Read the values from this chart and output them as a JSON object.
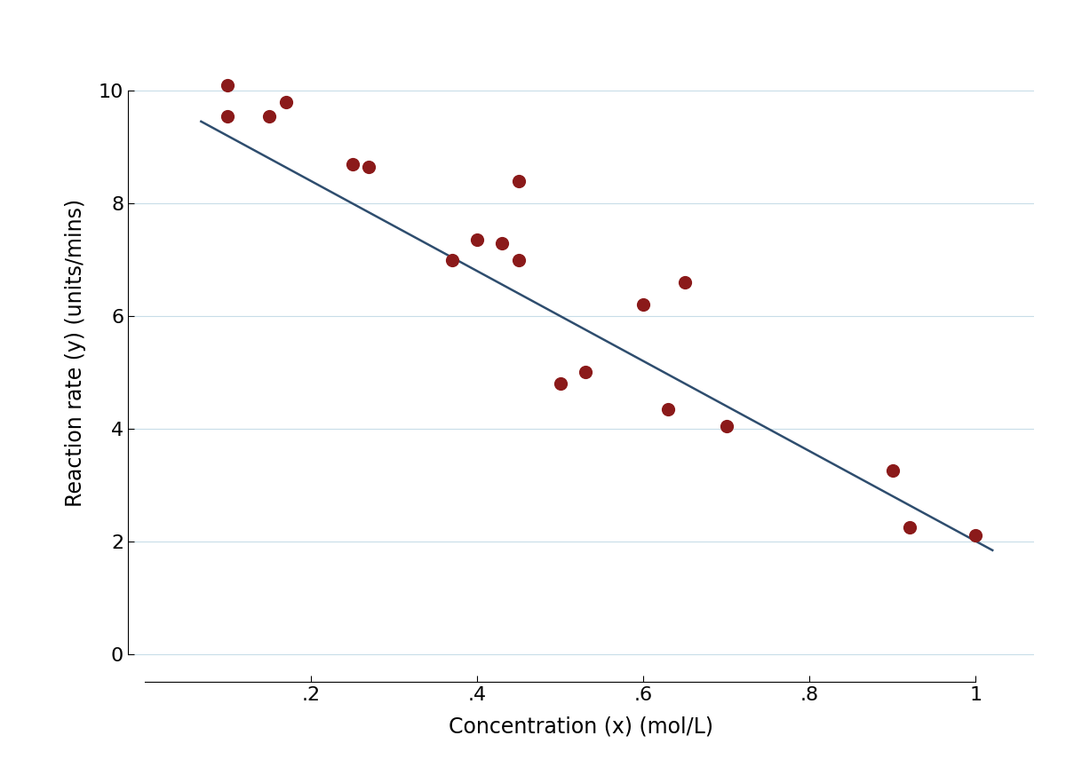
{
  "x_data": [
    0.1,
    0.1,
    0.15,
    0.17,
    0.25,
    0.27,
    0.37,
    0.4,
    0.43,
    0.45,
    0.45,
    0.5,
    0.53,
    0.6,
    0.63,
    0.65,
    0.7,
    0.9,
    0.92,
    1.0
  ],
  "y_data": [
    10.1,
    9.55,
    9.55,
    9.8,
    8.7,
    8.65,
    7.0,
    7.35,
    7.3,
    7.0,
    8.4,
    4.8,
    5.0,
    6.2,
    4.35,
    6.6,
    4.05,
    3.25,
    2.25,
    2.1
  ],
  "line_x": [
    0.068,
    1.02
  ],
  "line_intercept": 10.0,
  "line_slope": -8.0,
  "dot_color": "#8B1A1A",
  "line_color": "#2E4D6E",
  "dot_size": 120,
  "xlabel": "Concentration (x) (mol/L)",
  "ylabel": "Reaction rate (y) (units/mins)",
  "xlim": [
    -0.02,
    1.07
  ],
  "ylim": [
    -0.5,
    11.2
  ],
  "plot_ylim": [
    0.0,
    11.0
  ],
  "xticks": [
    0.2,
    0.4,
    0.6,
    0.8,
    1.0
  ],
  "yticks": [
    0,
    2,
    4,
    6,
    8,
    10
  ],
  "xtick_labels": [
    ".2",
    ".4",
    ".6",
    ".8",
    "1"
  ],
  "ytick_labels": [
    "0",
    "2",
    "4",
    "6",
    "8",
    "10"
  ],
  "grid_color": "#C8DDE8",
  "background_color": "#FFFFFF",
  "xlabel_fontsize": 17,
  "ylabel_fontsize": 17,
  "tick_fontsize": 16,
  "line_width": 1.8
}
